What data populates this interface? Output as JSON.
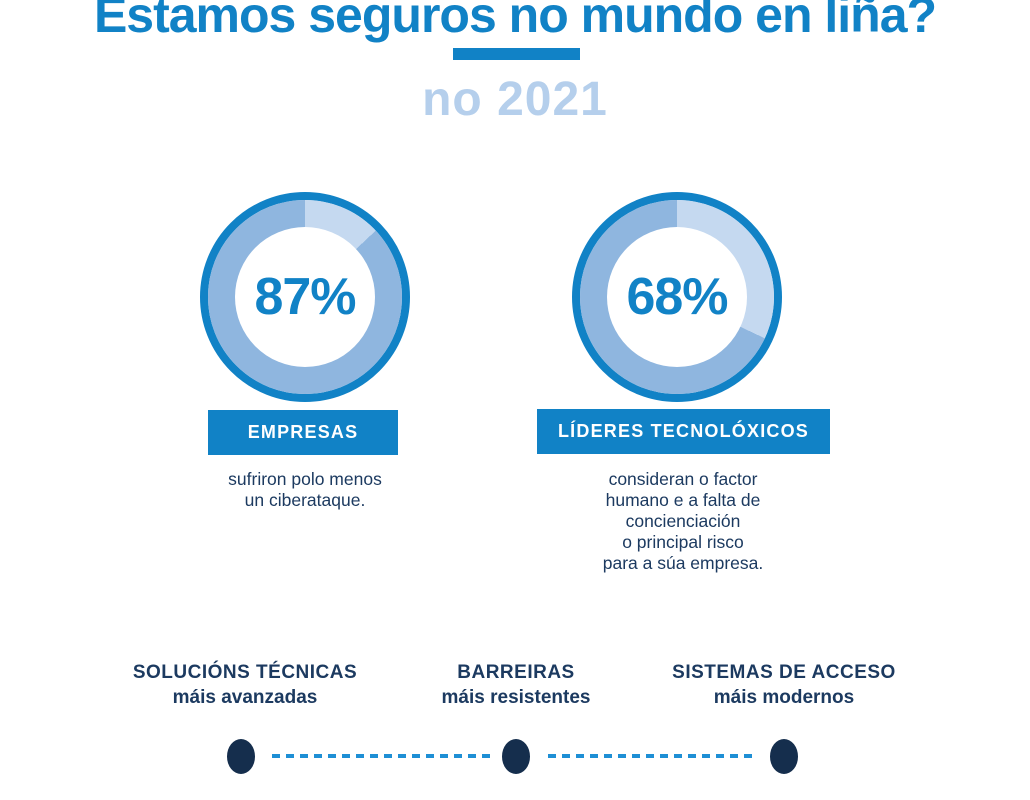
{
  "header": {
    "title": "Estamos seguros no mundo en liña?",
    "subtitle": "no 2021"
  },
  "colors": {
    "primary_blue": "#1182C6",
    "subtitle_light_blue": "#B5CFEC",
    "donut_filled_blue": "#8FB6DF",
    "donut_remainder_blue": "#C5D9F0",
    "text_navy": "#1C3A60",
    "dot_navy": "#152E4D",
    "dashed_line_blue": "#1E8FD5"
  },
  "chart_data": [
    {
      "type": "pie",
      "variant": "donut",
      "value": 87,
      "remainder": 13,
      "display": "87%",
      "label": "EMPRESAS",
      "description": "sufriron polo menos\nun ciberataque.",
      "colors": {
        "filled": "#8FB6DF",
        "remainder": "#C5D9F0",
        "outline": "#1182C6"
      }
    },
    {
      "type": "pie",
      "variant": "donut",
      "value": 68,
      "remainder": 32,
      "display": "68%",
      "label": "LÍDERES TECNOLÓXICOS",
      "description": "consideran o factor\nhumano e a falta de\nconcienciación\no principal risco\npara a súa empresa.",
      "colors": {
        "filled": "#8FB6DF",
        "remainder": "#C5D9F0",
        "outline": "#1182C6"
      }
    }
  ],
  "footer": {
    "columns": [
      {
        "title": "SOLUCIÓNS TÉCNICAS",
        "subtitle": "máis avanzadas"
      },
      {
        "title": "BARREIRAS",
        "subtitle": "máis resistentes"
      },
      {
        "title": "SISTEMAS DE ACCESO",
        "subtitle": "máis modernos"
      }
    ]
  }
}
